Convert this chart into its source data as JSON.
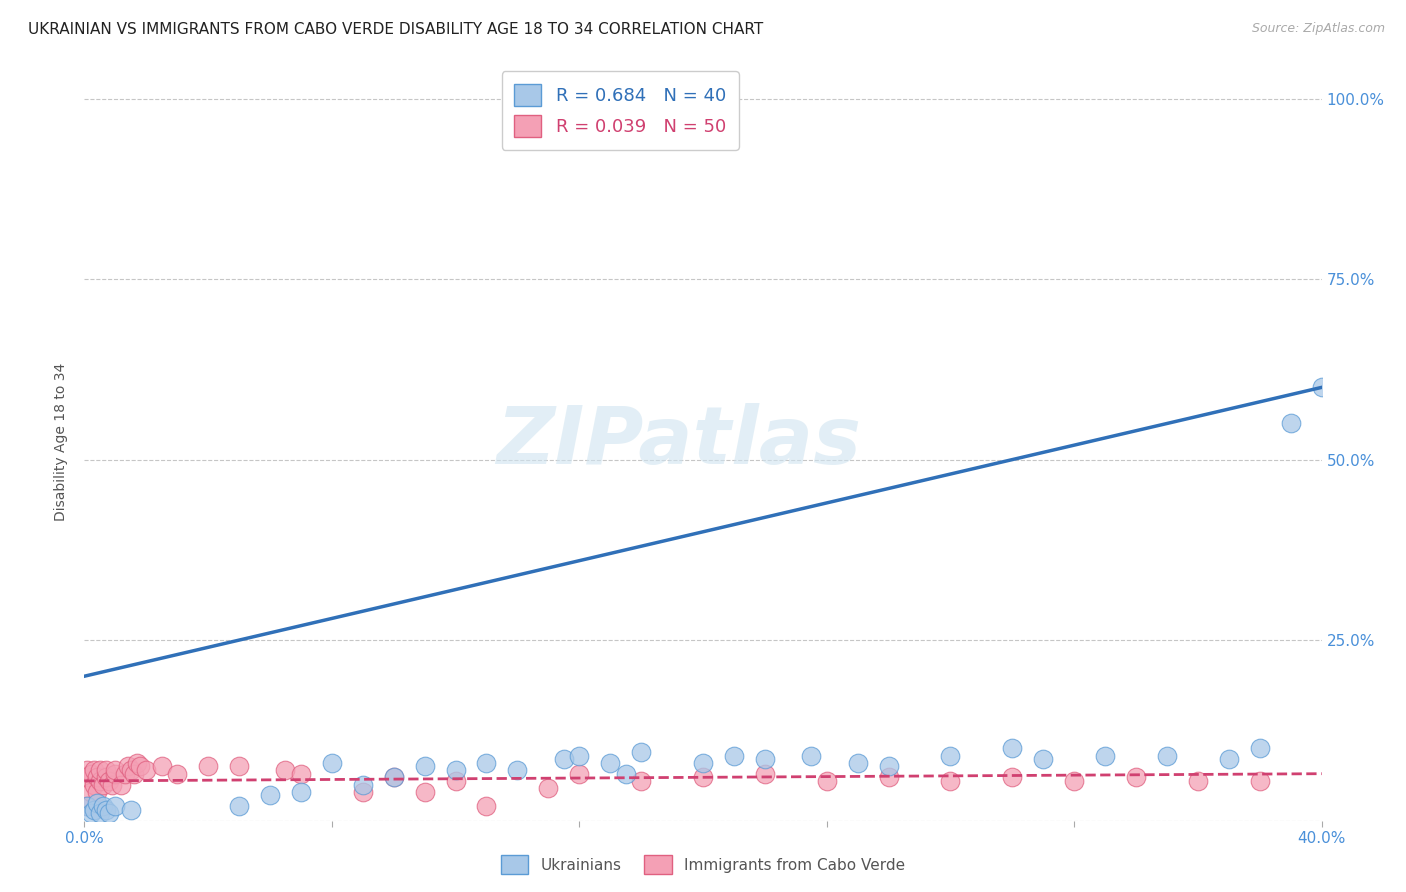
{
  "title": "UKRAINIAN VS IMMIGRANTS FROM CABO VERDE DISABILITY AGE 18 TO 34 CORRELATION CHART",
  "source": "Source: ZipAtlas.com",
  "ylabel": "Disability Age 18 to 34",
  "xlim": [
    0.0,
    0.4
  ],
  "ylim": [
    0.0,
    1.05
  ],
  "xtick_positions": [
    0.0,
    0.08,
    0.16,
    0.24,
    0.32,
    0.4
  ],
  "xtick_labels": [
    "0.0%",
    "",
    "",
    "",
    "",
    "40.0%"
  ],
  "ytick_positions": [
    0.0,
    0.25,
    0.5,
    0.75,
    1.0
  ],
  "ytick_labels": [
    "",
    "25.0%",
    "50.0%",
    "75.0%",
    "100.0%"
  ],
  "watermark": "ZIPatlas",
  "blue_color": "#a8c8e8",
  "blue_edge": "#5b9bd5",
  "pink_color": "#f4a0b5",
  "pink_edge": "#e06080",
  "blue_line_color": "#3070b8",
  "pink_line_color": "#d04070",
  "legend_blue_R": "R = 0.684",
  "legend_blue_N": "N = 40",
  "legend_pink_R": "R = 0.039",
  "legend_pink_N": "N = 50",
  "grid_color": "#c0c0c0",
  "background_color": "#ffffff",
  "title_fontsize": 11,
  "axis_label_fontsize": 10,
  "tick_fontsize": 11,
  "ukrainians_x": [
    0.001,
    0.002,
    0.003,
    0.004,
    0.005,
    0.006,
    0.007,
    0.008,
    0.01,
    0.015,
    0.05,
    0.06,
    0.07,
    0.08,
    0.09,
    0.1,
    0.11,
    0.12,
    0.13,
    0.14,
    0.155,
    0.16,
    0.17,
    0.175,
    0.18,
    0.2,
    0.21,
    0.22,
    0.235,
    0.25,
    0.26,
    0.28,
    0.3,
    0.31,
    0.33,
    0.35,
    0.37,
    0.38,
    0.39,
    0.4
  ],
  "ukrainians_y": [
    0.02,
    0.01,
    0.015,
    0.025,
    0.01,
    0.02,
    0.015,
    0.01,
    0.02,
    0.015,
    0.02,
    0.035,
    0.04,
    0.08,
    0.05,
    0.06,
    0.075,
    0.07,
    0.08,
    0.07,
    0.085,
    0.09,
    0.08,
    0.065,
    0.095,
    0.08,
    0.09,
    0.085,
    0.09,
    0.08,
    0.075,
    0.09,
    0.1,
    0.085,
    0.09,
    0.09,
    0.085,
    0.1,
    0.55,
    0.6
  ],
  "cabo_x": [
    0.001,
    0.001,
    0.001,
    0.002,
    0.002,
    0.003,
    0.003,
    0.004,
    0.004,
    0.005,
    0.005,
    0.006,
    0.007,
    0.007,
    0.008,
    0.009,
    0.01,
    0.01,
    0.012,
    0.013,
    0.014,
    0.015,
    0.016,
    0.017,
    0.018,
    0.02,
    0.025,
    0.03,
    0.04,
    0.05,
    0.065,
    0.07,
    0.09,
    0.1,
    0.11,
    0.12,
    0.13,
    0.15,
    0.16,
    0.18,
    0.2,
    0.22,
    0.24,
    0.26,
    0.28,
    0.3,
    0.32,
    0.34,
    0.36,
    0.38
  ],
  "cabo_y": [
    0.02,
    0.06,
    0.07,
    0.04,
    0.065,
    0.05,
    0.07,
    0.04,
    0.06,
    0.055,
    0.07,
    0.05,
    0.06,
    0.07,
    0.055,
    0.05,
    0.065,
    0.07,
    0.05,
    0.065,
    0.075,
    0.07,
    0.065,
    0.08,
    0.075,
    0.07,
    0.075,
    0.065,
    0.075,
    0.075,
    0.07,
    0.065,
    0.04,
    0.06,
    0.04,
    0.055,
    0.02,
    0.045,
    0.065,
    0.055,
    0.06,
    0.065,
    0.055,
    0.06,
    0.055,
    0.06,
    0.055,
    0.06,
    0.055,
    0.055
  ],
  "blue_trendline_x": [
    0.0,
    0.4
  ],
  "blue_trendline_y": [
    0.2,
    0.6
  ],
  "pink_trendline_x": [
    0.0,
    0.4
  ],
  "pink_trendline_y": [
    0.055,
    0.065
  ]
}
